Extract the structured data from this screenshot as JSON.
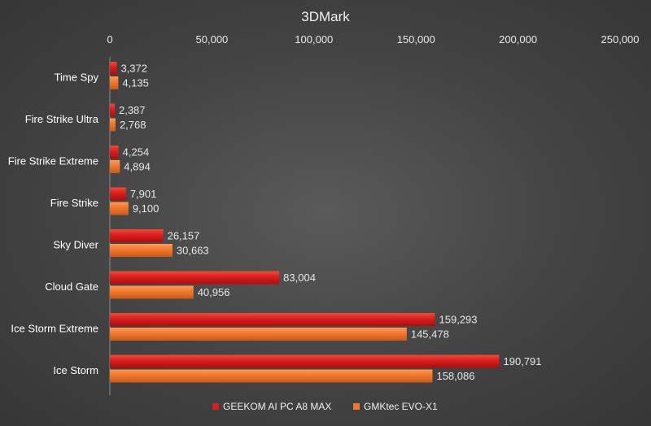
{
  "chart_data": {
    "type": "bar",
    "orientation": "horizontal",
    "title": "3DMark",
    "categories": [
      "Time Spy",
      "Fire Strike Ultra",
      "Fire Strike Extreme",
      "Fire Strike",
      "Sky Diver",
      "Cloud Gate",
      "Ice Storm Extreme",
      "Ice Storm"
    ],
    "series": [
      {
        "name": "GEEKOM AI PC A8 MAX",
        "color": "#d91e1e",
        "values": [
          3372,
          2387,
          4254,
          7901,
          26157,
          83004,
          159293,
          190791
        ],
        "labels": [
          "3,372",
          "2,387",
          "4,254",
          "7,901",
          "26,157",
          "83,004",
          "159,293",
          "190,791"
        ]
      },
      {
        "name": "GMKtec EVO-X1",
        "color": "#f07830",
        "values": [
          4135,
          2768,
          4894,
          9100,
          30663,
          40956,
          145478,
          158086
        ],
        "labels": [
          "4,135",
          "2,768",
          "4,894",
          "9,100",
          "30,663",
          "40,956",
          "145,478",
          "158,086"
        ]
      }
    ],
    "xlim": [
      0,
      250000
    ],
    "xticks": [
      0,
      50000,
      100000,
      150000,
      200000,
      250000
    ],
    "xtick_labels": [
      "0",
      "50,000",
      "100,000",
      "150,000",
      "200,000",
      "250,000"
    ],
    "xaxis_position": "top",
    "grid": false,
    "legend_position": "bottom"
  }
}
